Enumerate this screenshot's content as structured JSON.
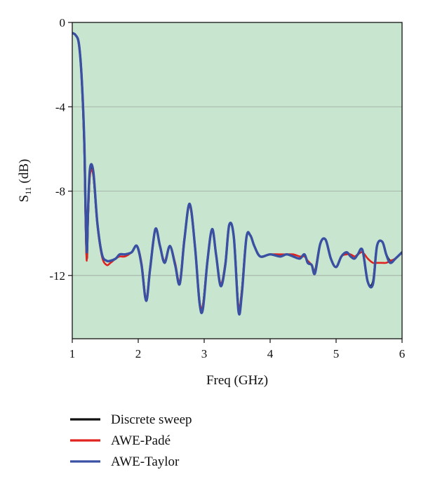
{
  "colors": {
    "plot_background": "#c8e6cf",
    "grid": "#9aa79d",
    "discrete": "#111111",
    "pade": "#e0231e",
    "taylor": "#3a50a3"
  },
  "chart_data": {
    "type": "line",
    "title": "",
    "xlabel": "Freq (GHz)",
    "ylabel_main": "S",
    "ylabel_sub": "11",
    "ylabel_unit": " (dB)",
    "xlim": [
      1,
      6
    ],
    "ylim": [
      -15,
      0
    ],
    "xticks": [
      1,
      2,
      3,
      4,
      5,
      6
    ],
    "xtick_labels": [
      "1",
      "2",
      "3",
      "4",
      "5",
      "6"
    ],
    "yticks": [
      0,
      -4,
      -8,
      -12
    ],
    "ytick_labels": [
      "0",
      "-4",
      "-8",
      "-12"
    ],
    "grid": "horizontal",
    "legend_position": "below",
    "series": [
      {
        "name": "Discrete sweep",
        "color_key": "discrete",
        "x": [
          1.0,
          1.05,
          1.1,
          1.14,
          1.18,
          1.2,
          1.22,
          1.24,
          1.27,
          1.32,
          1.38,
          1.45,
          1.52,
          1.58,
          1.66,
          1.72,
          1.8,
          1.9,
          1.98,
          2.05,
          2.12,
          2.18,
          2.26,
          2.33,
          2.4,
          2.48,
          2.56,
          2.63,
          2.7,
          2.78,
          2.86,
          2.93,
          2.98,
          3.05,
          3.12,
          3.18,
          3.25,
          3.32,
          3.38,
          3.45,
          3.52,
          3.57,
          3.64,
          3.7,
          3.76,
          3.85,
          4.0,
          4.15,
          4.25,
          4.35,
          4.45,
          4.52,
          4.57,
          4.63,
          4.68,
          4.76,
          4.84,
          4.92,
          5.0,
          5.08,
          5.16,
          5.22,
          5.28,
          5.33,
          5.4,
          5.48,
          5.56,
          5.62,
          5.7,
          5.76,
          5.82,
          5.9,
          6.0
        ],
        "y": [
          -0.5,
          -0.6,
          -1.0,
          -2.5,
          -5.5,
          -8.8,
          -11.2,
          -9.0,
          -7.0,
          -7.2,
          -9.5,
          -11.0,
          -11.3,
          -11.3,
          -11.2,
          -11.0,
          -11.0,
          -10.9,
          -10.6,
          -11.5,
          -13.2,
          -11.7,
          -9.8,
          -10.6,
          -11.4,
          -10.6,
          -11.5,
          -12.4,
          -10.3,
          -8.6,
          -10.6,
          -13.3,
          -13.5,
          -11.3,
          -9.8,
          -11.0,
          -12.5,
          -11.5,
          -9.6,
          -10.2,
          -13.6,
          -12.8,
          -10.2,
          -10.1,
          -10.6,
          -11.1,
          -11.0,
          -11.1,
          -11.0,
          -11.1,
          -11.2,
          -11.0,
          -11.4,
          -11.5,
          -11.8,
          -10.5,
          -10.3,
          -11.2,
          -11.6,
          -11.1,
          -10.9,
          -11.1,
          -11.2,
          -11.0,
          -10.8,
          -12.3,
          -12.3,
          -10.6,
          -10.4,
          -11.0,
          -11.3,
          -11.2,
          -10.9
        ]
      },
      {
        "name": "AWE-Padé",
        "color_key": "pade",
        "x": [
          1.0,
          1.05,
          1.1,
          1.14,
          1.18,
          1.2,
          1.22,
          1.24,
          1.27,
          1.32,
          1.38,
          1.45,
          1.52,
          1.58,
          1.66,
          1.72,
          1.8,
          1.9,
          1.98,
          2.05,
          2.12,
          2.18,
          2.26,
          2.33,
          2.4,
          2.48,
          2.56,
          2.63,
          2.7,
          2.78,
          2.86,
          2.93,
          2.98,
          3.05,
          3.12,
          3.18,
          3.25,
          3.32,
          3.38,
          3.45,
          3.52,
          3.57,
          3.64,
          3.7,
          3.76,
          3.85,
          4.0,
          4.15,
          4.25,
          4.35,
          4.45,
          4.52,
          4.57,
          4.63,
          4.68,
          4.76,
          4.84,
          4.92,
          5.0,
          5.08,
          5.16,
          5.22,
          5.28,
          5.33,
          5.4,
          5.48,
          5.56,
          5.62,
          5.7,
          5.76,
          5.82,
          5.9,
          6.0
        ],
        "y": [
          -0.5,
          -0.6,
          -1.0,
          -2.6,
          -5.8,
          -9.3,
          -11.3,
          -9.2,
          -7.2,
          -7.3,
          -9.6,
          -11.1,
          -11.5,
          -11.4,
          -11.2,
          -11.1,
          -11.1,
          -10.9,
          -10.6,
          -11.4,
          -13.1,
          -11.6,
          -9.8,
          -10.6,
          -11.3,
          -10.6,
          -11.4,
          -12.3,
          -10.2,
          -8.7,
          -10.6,
          -13.2,
          -13.4,
          -11.3,
          -9.8,
          -11.0,
          -12.4,
          -11.4,
          -9.6,
          -10.2,
          -13.5,
          -12.7,
          -10.2,
          -10.1,
          -10.6,
          -11.1,
          -11.0,
          -11.0,
          -11.0,
          -11.0,
          -11.1,
          -11.1,
          -11.3,
          -11.5,
          -11.8,
          -10.5,
          -10.3,
          -11.2,
          -11.6,
          -11.1,
          -11.0,
          -11.0,
          -11.1,
          -11.0,
          -10.9,
          -11.2,
          -11.4,
          -11.4,
          -11.4,
          -11.4,
          -11.3,
          -11.2,
          -10.9
        ]
      },
      {
        "name": "AWE-Taylor",
        "color_key": "taylor",
        "x": [
          1.0,
          1.05,
          1.1,
          1.14,
          1.18,
          1.2,
          1.22,
          1.24,
          1.27,
          1.32,
          1.38,
          1.45,
          1.52,
          1.58,
          1.66,
          1.72,
          1.8,
          1.9,
          1.98,
          2.05,
          2.12,
          2.18,
          2.26,
          2.33,
          2.4,
          2.48,
          2.56,
          2.63,
          2.7,
          2.78,
          2.86,
          2.93,
          2.98,
          3.05,
          3.12,
          3.18,
          3.25,
          3.32,
          3.38,
          3.45,
          3.52,
          3.57,
          3.64,
          3.7,
          3.76,
          3.85,
          4.0,
          4.15,
          4.25,
          4.35,
          4.45,
          4.52,
          4.57,
          4.63,
          4.68,
          4.76,
          4.84,
          4.92,
          5.0,
          5.08,
          5.16,
          5.22,
          5.28,
          5.33,
          5.4,
          5.48,
          5.56,
          5.62,
          5.7,
          5.76,
          5.82,
          5.9,
          6.0
        ],
        "y": [
          -0.5,
          -0.6,
          -1.0,
          -2.5,
          -5.4,
          -8.6,
          -10.9,
          -8.8,
          -6.9,
          -7.1,
          -9.5,
          -11.0,
          -11.3,
          -11.3,
          -11.2,
          -11.0,
          -11.0,
          -10.9,
          -10.6,
          -11.5,
          -13.2,
          -11.7,
          -9.8,
          -10.6,
          -11.4,
          -10.6,
          -11.5,
          -12.4,
          -10.3,
          -8.6,
          -10.6,
          -13.3,
          -13.6,
          -11.3,
          -9.8,
          -11.0,
          -12.5,
          -11.5,
          -9.6,
          -10.2,
          -13.7,
          -12.9,
          -10.2,
          -10.1,
          -10.6,
          -11.1,
          -11.0,
          -11.1,
          -11.0,
          -11.1,
          -11.2,
          -11.0,
          -11.4,
          -11.5,
          -11.9,
          -10.5,
          -10.3,
          -11.2,
          -11.6,
          -11.1,
          -10.9,
          -11.1,
          -11.2,
          -11.0,
          -10.8,
          -12.3,
          -12.4,
          -10.6,
          -10.4,
          -11.0,
          -11.4,
          -11.2,
          -10.9
        ]
      }
    ]
  }
}
